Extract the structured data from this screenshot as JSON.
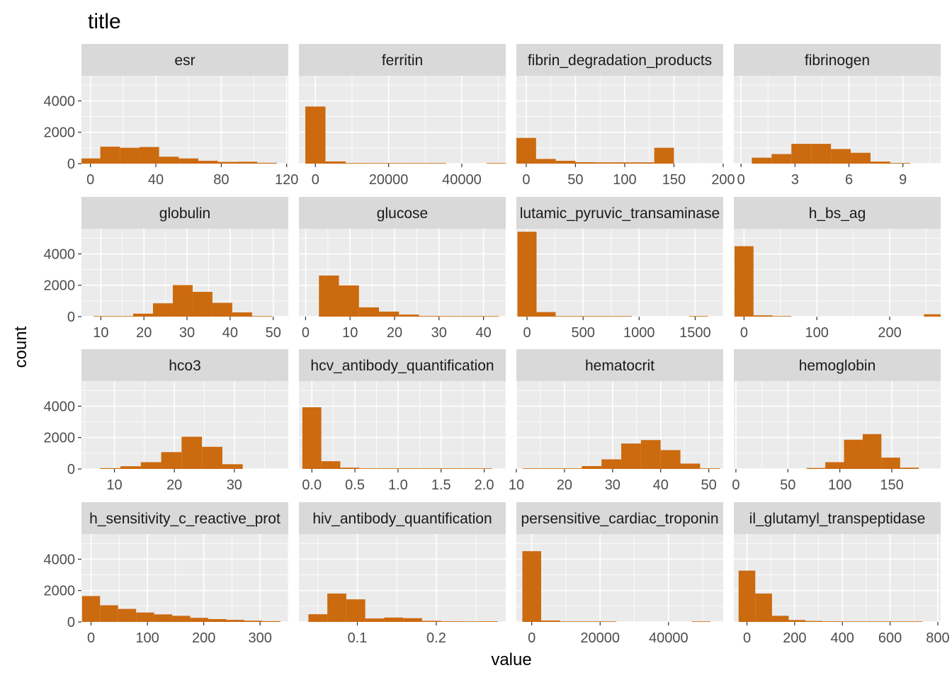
{
  "title": "title",
  "xlabel": "value",
  "ylabel": "count",
  "colors": {
    "bar": "#cc6a0f",
    "panel_bg": "#ebebeb",
    "strip_bg": "#d9d9d9",
    "grid": "#ffffff",
    "tick_text": "#4d4d4d"
  },
  "chart_data": {
    "type": "bar",
    "layout": "facet-grid 4x4",
    "grid": true,
    "shared_y": {
      "ticks": [
        0,
        2000,
        4000
      ],
      "tick_labels": [
        "0",
        "2000",
        "4000"
      ],
      "ylim": [
        0,
        5600
      ]
    },
    "panels": [
      {
        "name": "esr",
        "xlim": [
          -5.5,
          121
        ],
        "x_ticks": [
          0,
          40,
          80,
          120
        ],
        "x_tick_labels": [
          "0",
          "40",
          "80",
          "120"
        ],
        "bin_edges": [
          -6,
          6,
          18,
          30,
          42,
          54,
          66,
          78,
          90,
          102,
          114
        ],
        "counts": [
          330,
          1080,
          1010,
          1060,
          440,
          330,
          180,
          110,
          120,
          50
        ]
      },
      {
        "name": "ferritin",
        "xlim": [
          -4500,
          52000
        ],
        "x_ticks": [
          0,
          20000,
          40000
        ],
        "x_tick_labels": [
          "0",
          "20000",
          "40000"
        ],
        "bin_edges": [
          -2750,
          2750,
          8250,
          13750,
          19250,
          24750,
          30250,
          35750,
          41250,
          46750,
          52250
        ],
        "counts": [
          3640,
          140,
          40,
          10,
          5,
          5,
          5,
          0,
          0,
          5
        ]
      },
      {
        "name": "fibrin_degradation_products",
        "xlim": [
          -10,
          200
        ],
        "x_ticks": [
          0,
          50,
          100,
          150,
          200
        ],
        "x_tick_labels": [
          "0",
          "50",
          "100",
          "150",
          "200"
        ],
        "bin_edges": [
          -10,
          10,
          30,
          50,
          70,
          90,
          110,
          130,
          150
        ],
        "counts": [
          1640,
          300,
          180,
          90,
          80,
          80,
          80,
          1010
        ]
      },
      {
        "name": "fibrinogen",
        "xlim": [
          -0.4,
          11.1
        ],
        "x_ticks": [
          0,
          3,
          6,
          9
        ],
        "x_tick_labels": [
          "0",
          "3",
          "6",
          "9"
        ],
        "bin_edges": [
          0.6,
          1.7,
          2.8,
          3.9,
          5.0,
          6.1,
          7.2,
          8.3,
          9.4
        ],
        "counts": [
          380,
          610,
          1260,
          1260,
          930,
          690,
          130,
          40
        ]
      },
      {
        "name": "globulin",
        "xlim": [
          5.5,
          53.5
        ],
        "x_ticks": [
          10,
          20,
          30,
          40,
          50
        ],
        "x_tick_labels": [
          "10",
          "20",
          "30",
          "40",
          "50"
        ],
        "bin_edges": [
          8.3,
          12.9,
          17.5,
          22.1,
          26.7,
          31.3,
          35.9,
          40.5,
          45.1,
          49.7
        ],
        "counts": [
          5,
          10,
          190,
          850,
          2010,
          1580,
          880,
          270,
          30
        ]
      },
      {
        "name": "glucose",
        "xlim": [
          -1.5,
          45
        ],
        "x_ticks": [
          0,
          10,
          20,
          30,
          40
        ],
        "x_tick_labels": [
          "0",
          "10",
          "20",
          "30",
          "40"
        ],
        "bin_edges": [
          3,
          7.5,
          12,
          16.5,
          21,
          25.5,
          30,
          34.5,
          39,
          43.5
        ],
        "counts": [
          2620,
          1990,
          590,
          320,
          130,
          40,
          10,
          5,
          5
        ]
      },
      {
        "name": "glutamic_pyruvic_transaminase",
        "xlim": [
          -95,
          1750
        ],
        "x_ticks": [
          0,
          500,
          1000,
          1500
        ],
        "x_tick_labels": [
          "0",
          "500",
          "1000",
          "1500"
        ],
        "bin_edges": [
          -85,
          85,
          255,
          425,
          595,
          765,
          935,
          1105,
          1275,
          1445,
          1615
        ],
        "counts": [
          5410,
          290,
          20,
          10,
          5,
          5,
          0,
          0,
          0,
          5
        ]
      },
      {
        "name": "h_bs_ag",
        "xlim": [
          -14,
          270
        ],
        "x_ticks": [
          0,
          100,
          200
        ],
        "x_tick_labels": [
          "0",
          "100",
          "200"
        ],
        "bin_edges": [
          -13,
          13,
          39,
          65,
          91,
          117,
          143,
          169,
          195,
          221,
          247,
          273
        ],
        "counts": [
          4490,
          80,
          5,
          0,
          0,
          0,
          0,
          0,
          0,
          0,
          150
        ]
      },
      {
        "name": "hco3",
        "xlim": [
          4.5,
          39
        ],
        "x_ticks": [
          10,
          20,
          30
        ],
        "x_tick_labels": [
          "10",
          "20",
          "30"
        ],
        "bin_edges": [
          7.6,
          11,
          14.4,
          17.8,
          21.2,
          24.6,
          28,
          31.4
        ],
        "counts": [
          50,
          170,
          430,
          1070,
          2050,
          1410,
          300
        ]
      },
      {
        "name": "hcv_antibody_quantification",
        "xlim": [
          -0.15,
          2.25
        ],
        "x_ticks": [
          0,
          0.5,
          1.0,
          1.5,
          2.0
        ],
        "x_tick_labels": [
          "0.0",
          "0.5",
          "1.0",
          "1.5",
          "2.0"
        ],
        "bin_edges": [
          -0.11,
          0.11,
          0.33,
          0.55,
          0.77,
          0.99,
          1.21,
          1.43,
          1.65,
          1.87,
          2.09
        ],
        "counts": [
          3930,
          490,
          80,
          30,
          10,
          5,
          5,
          5,
          5,
          5
        ]
      },
      {
        "name": "hematocrit",
        "xlim": [
          10,
          53
        ],
        "x_ticks": [
          10,
          20,
          30,
          40,
          50
        ],
        "x_tick_labels": [
          "10",
          "20",
          "30",
          "40",
          "50"
        ],
        "bin_edges": [
          11.3,
          15.4,
          19.5,
          23.6,
          27.7,
          31.8,
          35.9,
          40,
          44.1,
          48.2,
          52.3
        ],
        "counts": [
          5,
          5,
          10,
          180,
          610,
          1620,
          1840,
          1200,
          340,
          30
        ]
      },
      {
        "name": "hemoglobin",
        "xlim": [
          -2,
          197
        ],
        "x_ticks": [
          0,
          50,
          100,
          150
        ],
        "x_tick_labels": [
          "0",
          "50",
          "100",
          "150"
        ],
        "bin_edges": [
          -2,
          7,
          16,
          25,
          34,
          43,
          52,
          61,
          70,
          79,
          88,
          97,
          106,
          115,
          124
        ],
        "counts": [
          0,
          0,
          0,
          0,
          0,
          0,
          0,
          0,
          0,
          0,
          0,
          0,
          0,
          0
        ],
        "bins": [
          {
            "x0": 68,
            "x1": 86,
            "count": 60
          },
          {
            "x0": 86,
            "x1": 104,
            "count": 430
          },
          {
            "x0": 104,
            "x1": 122,
            "count": 1860
          },
          {
            "x0": 122,
            "x1": 140,
            "count": 2220
          },
          {
            "x0": 140,
            "x1": 158,
            "count": 720
          },
          {
            "x0": 158,
            "x1": 176,
            "count": 80
          }
        ]
      },
      {
        "name": "high_sensitivity_c_reactive_protein",
        "xlim": [
          -17,
          350
        ],
        "x_ticks": [
          0,
          100,
          200,
          300
        ],
        "x_tick_labels": [
          "0",
          "100",
          "200",
          "300"
        ],
        "bin_edges": [
          -16,
          16,
          48,
          80,
          112,
          144,
          176,
          208,
          240,
          272,
          304,
          336
        ],
        "counts": [
          1650,
          1060,
          830,
          600,
          480,
          390,
          260,
          180,
          130,
          80,
          50
        ]
      },
      {
        "name": "hiv_antibody_quantification",
        "xlim": [
          0.026,
          0.288
        ],
        "x_ticks": [
          0.1,
          0.2
        ],
        "x_tick_labels": [
          "0.1",
          "0.2"
        ],
        "bin_edges": [
          0.038,
          0.062,
          0.086,
          0.11,
          0.134,
          0.158,
          0.182,
          0.206,
          0.23,
          0.254,
          0.278
        ],
        "counts": [
          490,
          1810,
          1440,
          220,
          280,
          240,
          70,
          40,
          10,
          40
        ]
      },
      {
        "name": "hypersensitive_cardiac_troponin_i",
        "xlim": [
          -4500,
          56000
        ],
        "x_ticks": [
          0,
          20000,
          40000
        ],
        "x_tick_labels": [
          "0",
          "20000",
          "40000"
        ],
        "bin_edges": [
          -2750,
          2750,
          8250,
          13750,
          19250,
          24750,
          30250,
          35750,
          41250,
          46750,
          52250
        ],
        "counts": [
          4510,
          90,
          30,
          5,
          5,
          0,
          0,
          0,
          0,
          30
        ]
      },
      {
        "name": "il_glutamyl_transpeptidase",
        "xlim": [
          -55,
          812
        ],
        "x_ticks": [
          0,
          200,
          400,
          600,
          800
        ],
        "x_tick_labels": [
          "0",
          "200",
          "400",
          "600",
          "800"
        ],
        "bin_edges": [
          -35,
          35,
          105,
          175,
          245,
          315,
          385,
          455,
          525,
          595,
          665,
          735
        ],
        "counts": [
          3270,
          1810,
          390,
          120,
          60,
          40,
          20,
          5,
          5,
          5,
          5
        ]
      }
    ]
  },
  "strip_labels": [
    "esr",
    "ferritin",
    "fibrin_degradation_products",
    "fibrinogen",
    "globulin",
    "glucose",
    "lutamic_pyruvic_transaminase",
    "h_bs_ag",
    "hco3",
    "hcv_antibody_quantification",
    "hematocrit",
    "hemoglobin",
    "h_sensitivity_c_reactive_prot",
    "hiv_antibody_quantification",
    "persensitive_cardiac_troponin",
    "il_glutamyl_transpeptidase"
  ]
}
